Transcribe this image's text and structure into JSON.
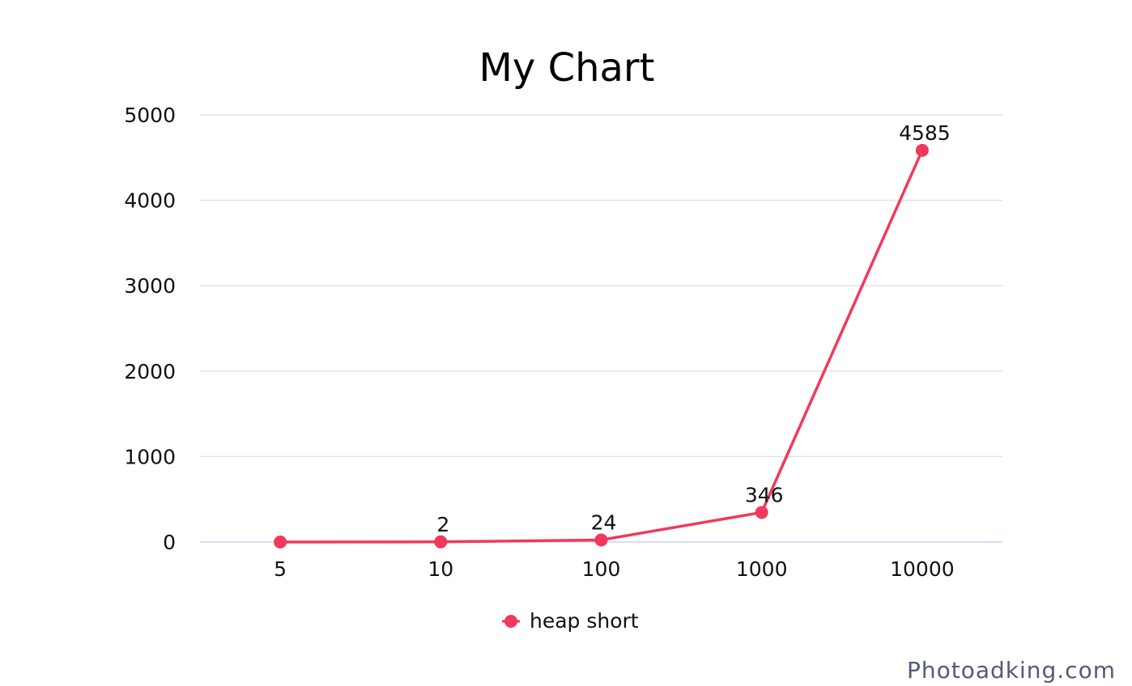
{
  "chart_data": {
    "type": "line",
    "title": "My Chart",
    "categories": [
      "5",
      "10",
      "100",
      "1000",
      "10000"
    ],
    "series": [
      {
        "name": "heap short",
        "values": [
          0,
          2,
          24,
          346,
          4585
        ],
        "labels": [
          "",
          "2",
          "24",
          "346",
          "4585"
        ],
        "color": "#f0395c"
      }
    ],
    "yticks": [
      "0",
      "1000",
      "2000",
      "3000",
      "4000",
      "5000"
    ],
    "ylim": [
      0,
      5000
    ],
    "grid": true,
    "legend": "bottom-center"
  },
  "watermark": "Photoadking.com"
}
